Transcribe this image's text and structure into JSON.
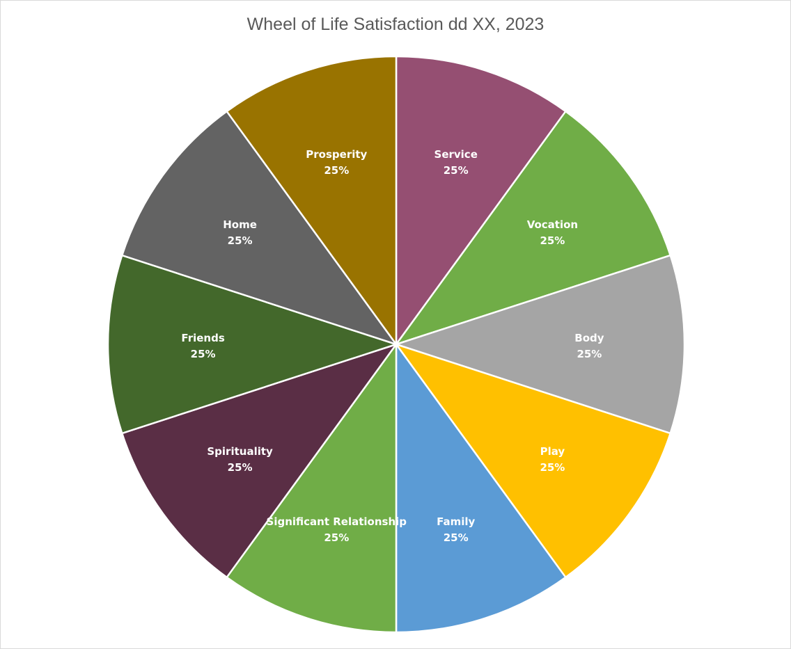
{
  "chart_data": {
    "type": "pie",
    "title": "Wheel of Life Satisfaction dd XX, 2023",
    "legend": "none",
    "slices": [
      {
        "label": "Service",
        "value": 25,
        "value_label": "25%",
        "color": "#954f72"
      },
      {
        "label": "Vocation",
        "value": 25,
        "value_label": "25%",
        "color": "#70ad47"
      },
      {
        "label": "Body",
        "value": 25,
        "value_label": "25%",
        "color": "#a5a5a5"
      },
      {
        "label": "Play",
        "value": 25,
        "value_label": "25%",
        "color": "#ffc000"
      },
      {
        "label": "Family",
        "value": 25,
        "value_label": "25%",
        "color": "#5b9bd5"
      },
      {
        "label": "Significant Relationship",
        "value": 25,
        "value_label": "25%",
        "color": "#70ad47"
      },
      {
        "label": "Spirituality",
        "value": 25,
        "value_label": "25%",
        "color": "#5a2e45"
      },
      {
        "label": "Friends",
        "value": 25,
        "value_label": "25%",
        "color": "#43682b"
      },
      {
        "label": "Home",
        "value": 25,
        "value_label": "25%",
        "color": "#636363"
      },
      {
        "label": "Prosperity",
        "value": 25,
        "value_label": "25%",
        "color": "#997300"
      }
    ]
  }
}
